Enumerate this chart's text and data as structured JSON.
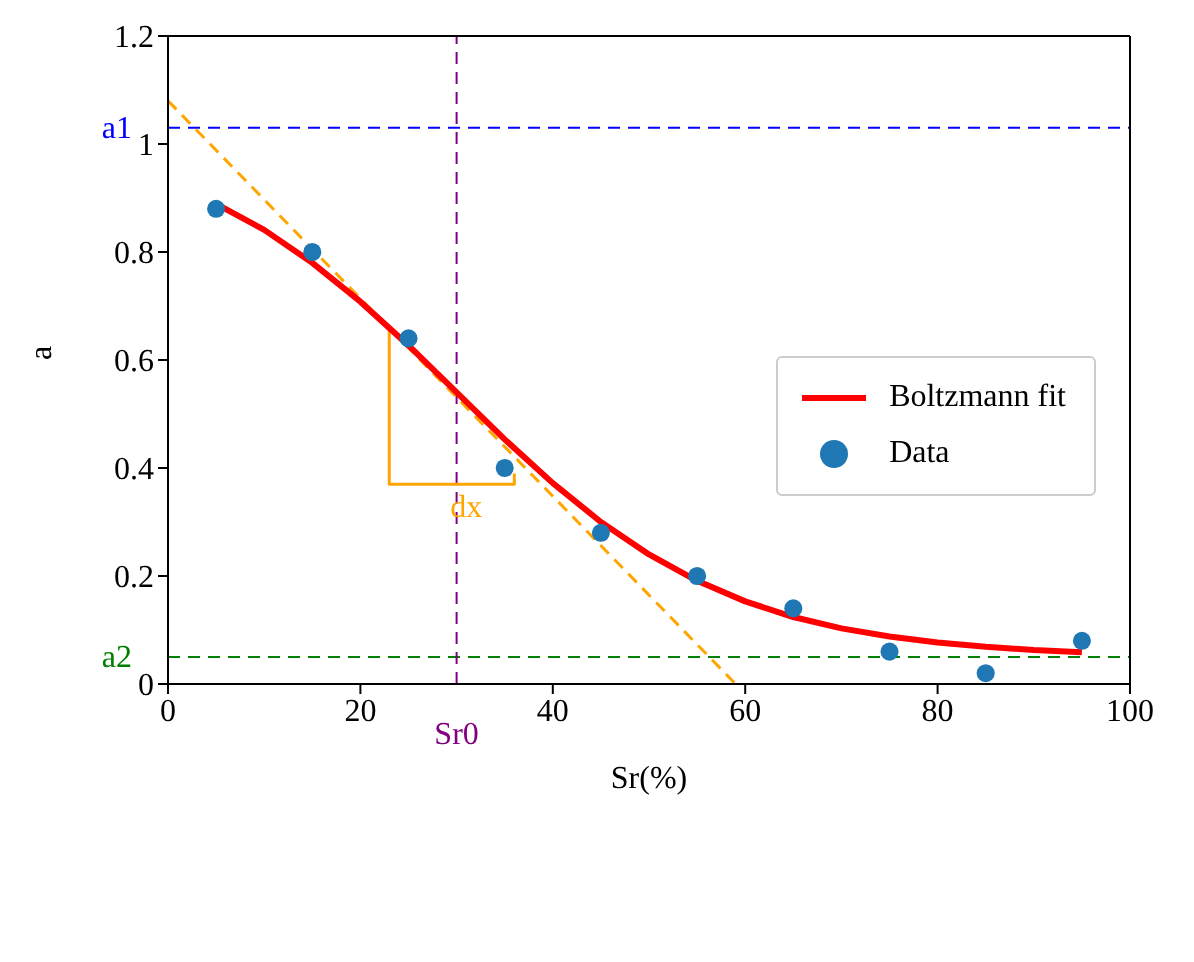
{
  "chart_data": {
    "type": "line",
    "xlabel": "Sr(%)",
    "ylabel": "a",
    "xlim": [
      0,
      100
    ],
    "xticks": [
      0,
      20,
      40,
      60,
      80,
      100
    ],
    "ylim": [
      0,
      1.2
    ],
    "yticks": [
      0,
      0.2,
      0.4,
      0.6,
      0.8,
      1,
      1.2
    ],
    "legend": "center right",
    "series": [
      {
        "x": [
          0,
          59
        ],
        "values": [
          1.08,
          0
        ],
        "color": "#ffa500",
        "line_style": "dashed",
        "marker": "none"
      },
      {
        "x": [
          23,
          23,
          36,
          36
        ],
        "values": [
          0.66,
          0.37,
          0.37,
          0.39
        ],
        "color": "#ffa500",
        "line_style": "solid",
        "marker": "none"
      },
      {
        "name": "Boltzmann fit",
        "x": [
          5,
          10,
          15,
          20,
          25,
          30,
          35,
          40,
          45,
          50,
          55,
          60,
          65,
          70,
          75,
          80,
          85,
          90,
          95
        ],
        "values": [
          0.889,
          0.841,
          0.78,
          0.708,
          0.627,
          0.54,
          0.453,
          0.372,
          0.3,
          0.24,
          0.191,
          0.153,
          0.124,
          0.103,
          0.088,
          0.077,
          0.069,
          0.063,
          0.059
        ],
        "color": "#ff0000",
        "line_style": "solid",
        "marker": "none"
      },
      {
        "type": "scatter",
        "name": "Data",
        "x": [
          5,
          15,
          25,
          35,
          45,
          55,
          65,
          75,
          85,
          95
        ],
        "values": [
          0.88,
          0.8,
          0.64,
          0.4,
          0.28,
          0.2,
          0.14,
          0.06,
          0.02,
          0.08
        ],
        "color": "#1f77b4",
        "marker": "circle"
      }
    ],
    "ref_lines": [
      {
        "axis": "y",
        "value": 1.03,
        "label": "a1",
        "color": "#0000ff",
        "line_style": "dashed"
      },
      {
        "axis": "y",
        "value": 0.05,
        "label": "a2",
        "color": "#008000",
        "line_style": "dashed"
      },
      {
        "axis": "x",
        "value": 30,
        "label": "Sr0",
        "color": "#800080",
        "line_style": "dashed"
      }
    ],
    "annotations": [
      {
        "text": "dx",
        "x": 31,
        "y": 0.33
      }
    ]
  }
}
